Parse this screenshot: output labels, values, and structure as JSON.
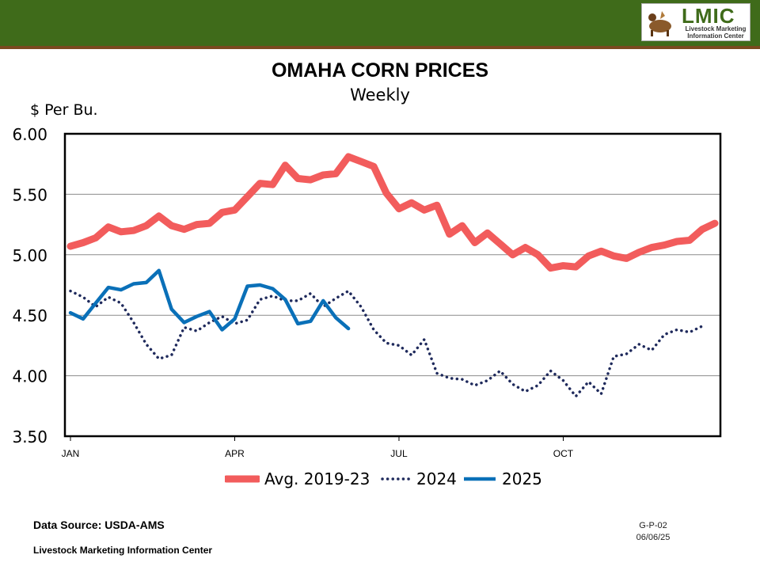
{
  "header": {
    "brand_color": "#3f6b1a"
  },
  "logo": {
    "mark": "LMIC",
    "subtitle_line1": "Livestock Marketing",
    "subtitle_line2": "Information Center"
  },
  "chart_data": {
    "type": "line",
    "title": "OMAHA CORN PRICES",
    "subtitle": "Weekly",
    "ylabel": "$ Per Bu.",
    "xlabel": "",
    "ylim": [
      3.5,
      6.0
    ],
    "ytick_values": [
      3.5,
      4.0,
      4.5,
      5.0,
      5.5,
      6.0
    ],
    "ytick_labels": [
      "3.50",
      "4.00",
      "4.50",
      "5.00",
      "5.50",
      "6.00"
    ],
    "x_weeks": 52,
    "xtick_labels": [
      {
        "week": 1,
        "label": "JAN"
      },
      {
        "week": 14,
        "label": "APR"
      },
      {
        "week": 27,
        "label": "JUL"
      },
      {
        "week": 40,
        "label": "OCT"
      }
    ],
    "grid": true,
    "legend_position": "bottom",
    "series": [
      {
        "name": "Avg. 2019-23",
        "color": "#f25c5c",
        "style": "solid-thick",
        "values": [
          5.07,
          5.1,
          5.14,
          5.23,
          5.19,
          5.2,
          5.24,
          5.32,
          5.24,
          5.21,
          5.25,
          5.26,
          5.35,
          5.37,
          5.48,
          5.59,
          5.58,
          5.74,
          5.63,
          5.62,
          5.66,
          5.67,
          5.81,
          5.77,
          5.73,
          5.51,
          5.38,
          5.43,
          5.37,
          5.41,
          5.17,
          5.24,
          5.1,
          5.18,
          5.09,
          5.0,
          5.06,
          5.0,
          4.89,
          4.91,
          4.9,
          4.99,
          5.03,
          4.99,
          4.97,
          5.02,
          5.06,
          5.08,
          5.11,
          5.12,
          5.21,
          5.26
        ]
      },
      {
        "name": "2024",
        "color": "#1f2a5c",
        "style": "dotted",
        "values": [
          4.7,
          4.65,
          4.57,
          4.65,
          4.6,
          4.44,
          4.26,
          4.14,
          4.17,
          4.4,
          4.37,
          4.44,
          4.49,
          4.43,
          4.46,
          4.63,
          4.66,
          4.62,
          4.62,
          4.68,
          4.57,
          4.64,
          4.7,
          4.57,
          4.38,
          4.27,
          4.25,
          4.17,
          4.3,
          4.02,
          3.98,
          3.97,
          3.92,
          3.96,
          4.04,
          3.93,
          3.87,
          3.92,
          4.04,
          3.96,
          3.83,
          3.95,
          3.85,
          4.16,
          4.18,
          4.26,
          4.21,
          4.34,
          4.38,
          4.36,
          4.41
        ]
      },
      {
        "name": "2025",
        "color": "#0a70b8",
        "style": "solid",
        "values": [
          4.52,
          4.47,
          4.6,
          4.73,
          4.71,
          4.76,
          4.77,
          4.87,
          4.55,
          4.44,
          4.49,
          4.53,
          4.38,
          4.47,
          4.74,
          4.75,
          4.72,
          4.63,
          4.43,
          4.45,
          4.62,
          4.48,
          4.39
        ]
      }
    ]
  },
  "footer": {
    "data_source": "Data Source:  USDA-AMS",
    "organization": "Livestock Marketing Information Center",
    "code": "G-P-02",
    "date": "06/06/25"
  }
}
